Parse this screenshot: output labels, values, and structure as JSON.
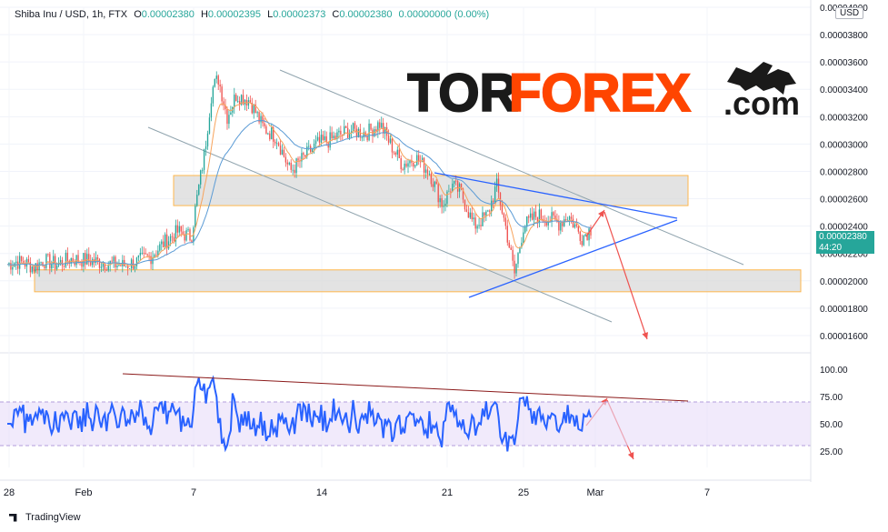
{
  "header": {
    "symbol": "Shiba Inu / USD, 1h, FTX",
    "o_label": "O",
    "o_value": "0.00002380",
    "h_label": "H",
    "h_value": "0.00002395",
    "l_label": "L",
    "l_value": "0.00002373",
    "c_label": "C",
    "c_value": "0.00002380",
    "change": "0.00000000 (0.00%)"
  },
  "currency_badge": "USD",
  "last_price": {
    "value": "0.00002380",
    "countdown": "44:20"
  },
  "brand": {
    "part1": "TOR",
    "part2": "FOREX",
    "part3": ".com",
    "color1": "#1a1a1a",
    "color2": "#ff4500"
  },
  "footer": {
    "logo_text": "TradingView"
  },
  "colors": {
    "up": "#26a69a",
    "down": "#ef5350",
    "ema_fast": "#f7a35c",
    "ema_slow": "#5b9bd5",
    "rsi": "#2962ff",
    "rsi_band": "#e8dcf8",
    "zone_fill": "#d9d9d9",
    "zone_border": "#ffb74d",
    "trend_blue": "#2962ff",
    "arrow_red": "#ef5350",
    "resistance_brown": "#8b1a1a",
    "channel_gray": "#90a4ae"
  },
  "chart_data": [
    {
      "type": "candlestick",
      "ylim": [
        1.5e-05,
        4e-05
      ],
      "y_ticks": [
        "0.00004000",
        "0.00003800",
        "0.00003600",
        "0.00003400",
        "0.00003200",
        "0.00003000",
        "0.00002800",
        "0.00002600",
        "0.00002400",
        "0.00002200",
        "0.00002000",
        "0.00001800",
        "0.00001600"
      ],
      "x_ticks": [
        "28",
        "Feb",
        "7",
        "14",
        "21",
        "25",
        "Mar",
        "7"
      ],
      "series": [
        {
          "kind": "price",
          "key_points": [
            [
              0,
              2.12e-05
            ],
            [
              10,
              2.14e-05
            ],
            [
              20,
              2.13e-05
            ],
            [
              30,
              2.1e-05
            ],
            [
              40,
              2.15e-05
            ],
            [
              55,
              2.12e-05
            ],
            [
              70,
              2.16e-05
            ],
            [
              90,
              2.15e-05
            ],
            [
              110,
              2.13e-05
            ],
            [
              130,
              2.11e-05
            ],
            [
              145,
              2.14e-05
            ],
            [
              160,
              2.18e-05
            ],
            [
              175,
              2.28e-05
            ],
            [
              190,
              2.36e-05
            ],
            [
              205,
              2.32e-05
            ],
            [
              210,
              2.55e-05
            ],
            [
              220,
              2.95e-05
            ],
            [
              228,
              3.4e-05
            ],
            [
              235,
              3.48e-05
            ],
            [
              245,
              3.2e-05
            ],
            [
              255,
              3.36e-05
            ],
            [
              270,
              3.32e-05
            ],
            [
              285,
              3.12e-05
            ],
            [
              300,
              3.05e-05
            ],
            [
              315,
              2.8e-05
            ],
            [
              330,
              2.9e-05
            ],
            [
              345,
              3e-05
            ],
            [
              360,
              3.03e-05
            ],
            [
              380,
              3.1e-05
            ],
            [
              400,
              3.08e-05
            ],
            [
              415,
              3.15e-05
            ],
            [
              425,
              3.02e-05
            ],
            [
              440,
              2.85e-05
            ],
            [
              455,
              2.9e-05
            ],
            [
              470,
              2.8e-05
            ],
            [
              485,
              2.55e-05
            ],
            [
              495,
              2.7e-05
            ],
            [
              505,
              2.65e-05
            ],
            [
              520,
              2.4e-05
            ],
            [
              535,
              2.48e-05
            ],
            [
              545,
              2.7e-05
            ],
            [
              555,
              2.4e-05
            ],
            [
              565,
              2.05e-05
            ],
            [
              575,
              2.4e-05
            ],
            [
              590,
              2.48e-05
            ],
            [
              605,
              2.45e-05
            ],
            [
              615,
              2.42e-05
            ],
            [
              625,
              2.48e-05
            ],
            [
              640,
              2.32e-05
            ],
            [
              650,
              2.38e-05
            ]
          ]
        },
        {
          "kind": "ema_fast",
          "name": ""
        },
        {
          "kind": "ema_slow",
          "name": ""
        }
      ],
      "annotations": {
        "resistance_zone": [
          2.55e-05,
          2.77e-05
        ],
        "support_zone": [
          1.92e-05,
          2.08e-05
        ],
        "channel": "descending",
        "triangle": "symmetrical",
        "projection": "down"
      }
    },
    {
      "type": "line",
      "ylim": [
        10,
        110
      ],
      "y_ticks": [
        "100.00",
        "75.00",
        "50.00",
        "25.00"
      ],
      "band": [
        30,
        70
      ],
      "series": [
        {
          "kind": "rsi"
        }
      ]
    }
  ]
}
